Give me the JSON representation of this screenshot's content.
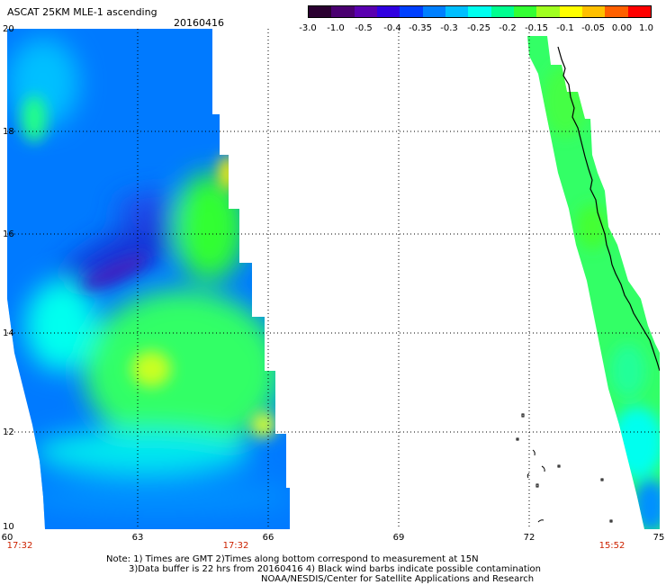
{
  "header": {
    "title": "ASCAT 25KM MLE-1 ascending",
    "date": "20160416"
  },
  "colorbar": {
    "tick_labels": [
      "-3.0",
      "-1.0",
      "-0.5",
      "-0.4",
      "-0.35",
      "-0.3",
      "-0.25",
      "-0.2",
      "-0.15",
      "-0.1",
      "-0.05",
      "0.00",
      "1.0"
    ],
    "colors": [
      "#2a0030",
      "#4a0070",
      "#5a00b0",
      "#3000e0",
      "#0040ff",
      "#0080ff",
      "#00bfff",
      "#00ffef",
      "#00ff90",
      "#33ff33",
      "#a0ff20",
      "#ffff00",
      "#ffc000",
      "#ff6000",
      "#ff0000"
    ]
  },
  "map": {
    "y_axis_labels": [
      "20",
      "18",
      "16",
      "14",
      "12",
      "10"
    ],
    "x_axis_labels": [
      "60",
      "63",
      "66",
      "69",
      "72",
      "75"
    ],
    "pass_times": [
      "17:32",
      "17:32",
      "15:52"
    ]
  },
  "notes": [
    "Note: 1) Times are GMT 2)Times along bottom correspond to measurement at 15N",
    "3)Data buffer is 22 hrs from 20160416 4) Black wind barbs indicate possible contamination",
    "NOAA/NESDIS/Center for Satellite Applications and Research"
  ]
}
